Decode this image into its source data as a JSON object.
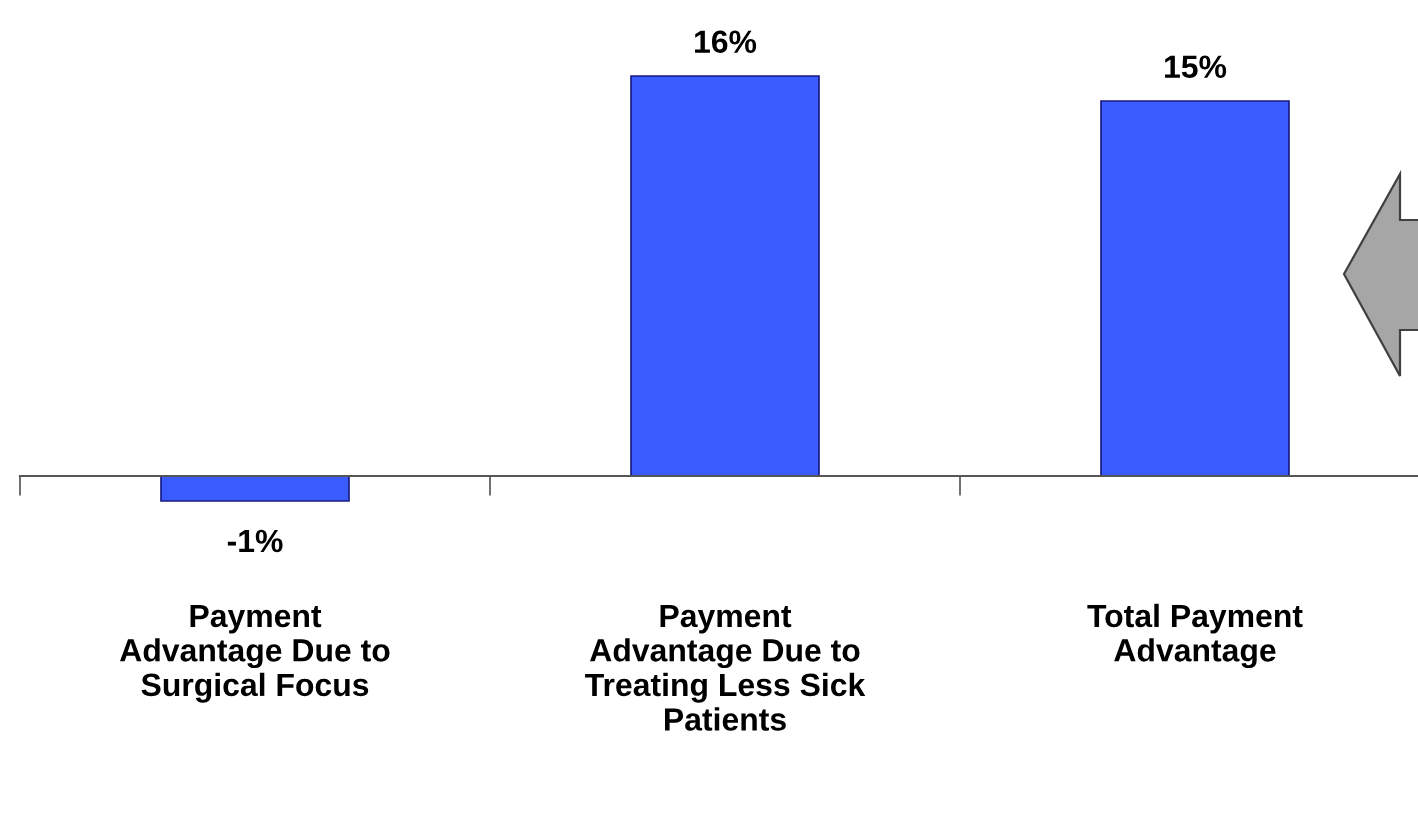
{
  "chart_data": {
    "type": "bar",
    "categories": [
      "Payment\nAdvantage Due to\nSurgical Focus",
      "Payment\nAdvantage Due to\nTreating Less Sick\nPatients",
      "Total Payment\nAdvantage"
    ],
    "values": [
      -1,
      16,
      15
    ],
    "value_labels": [
      "-1%",
      "16%",
      "15%"
    ],
    "color": "#3a5cff",
    "grid": false,
    "legend": false
  }
}
